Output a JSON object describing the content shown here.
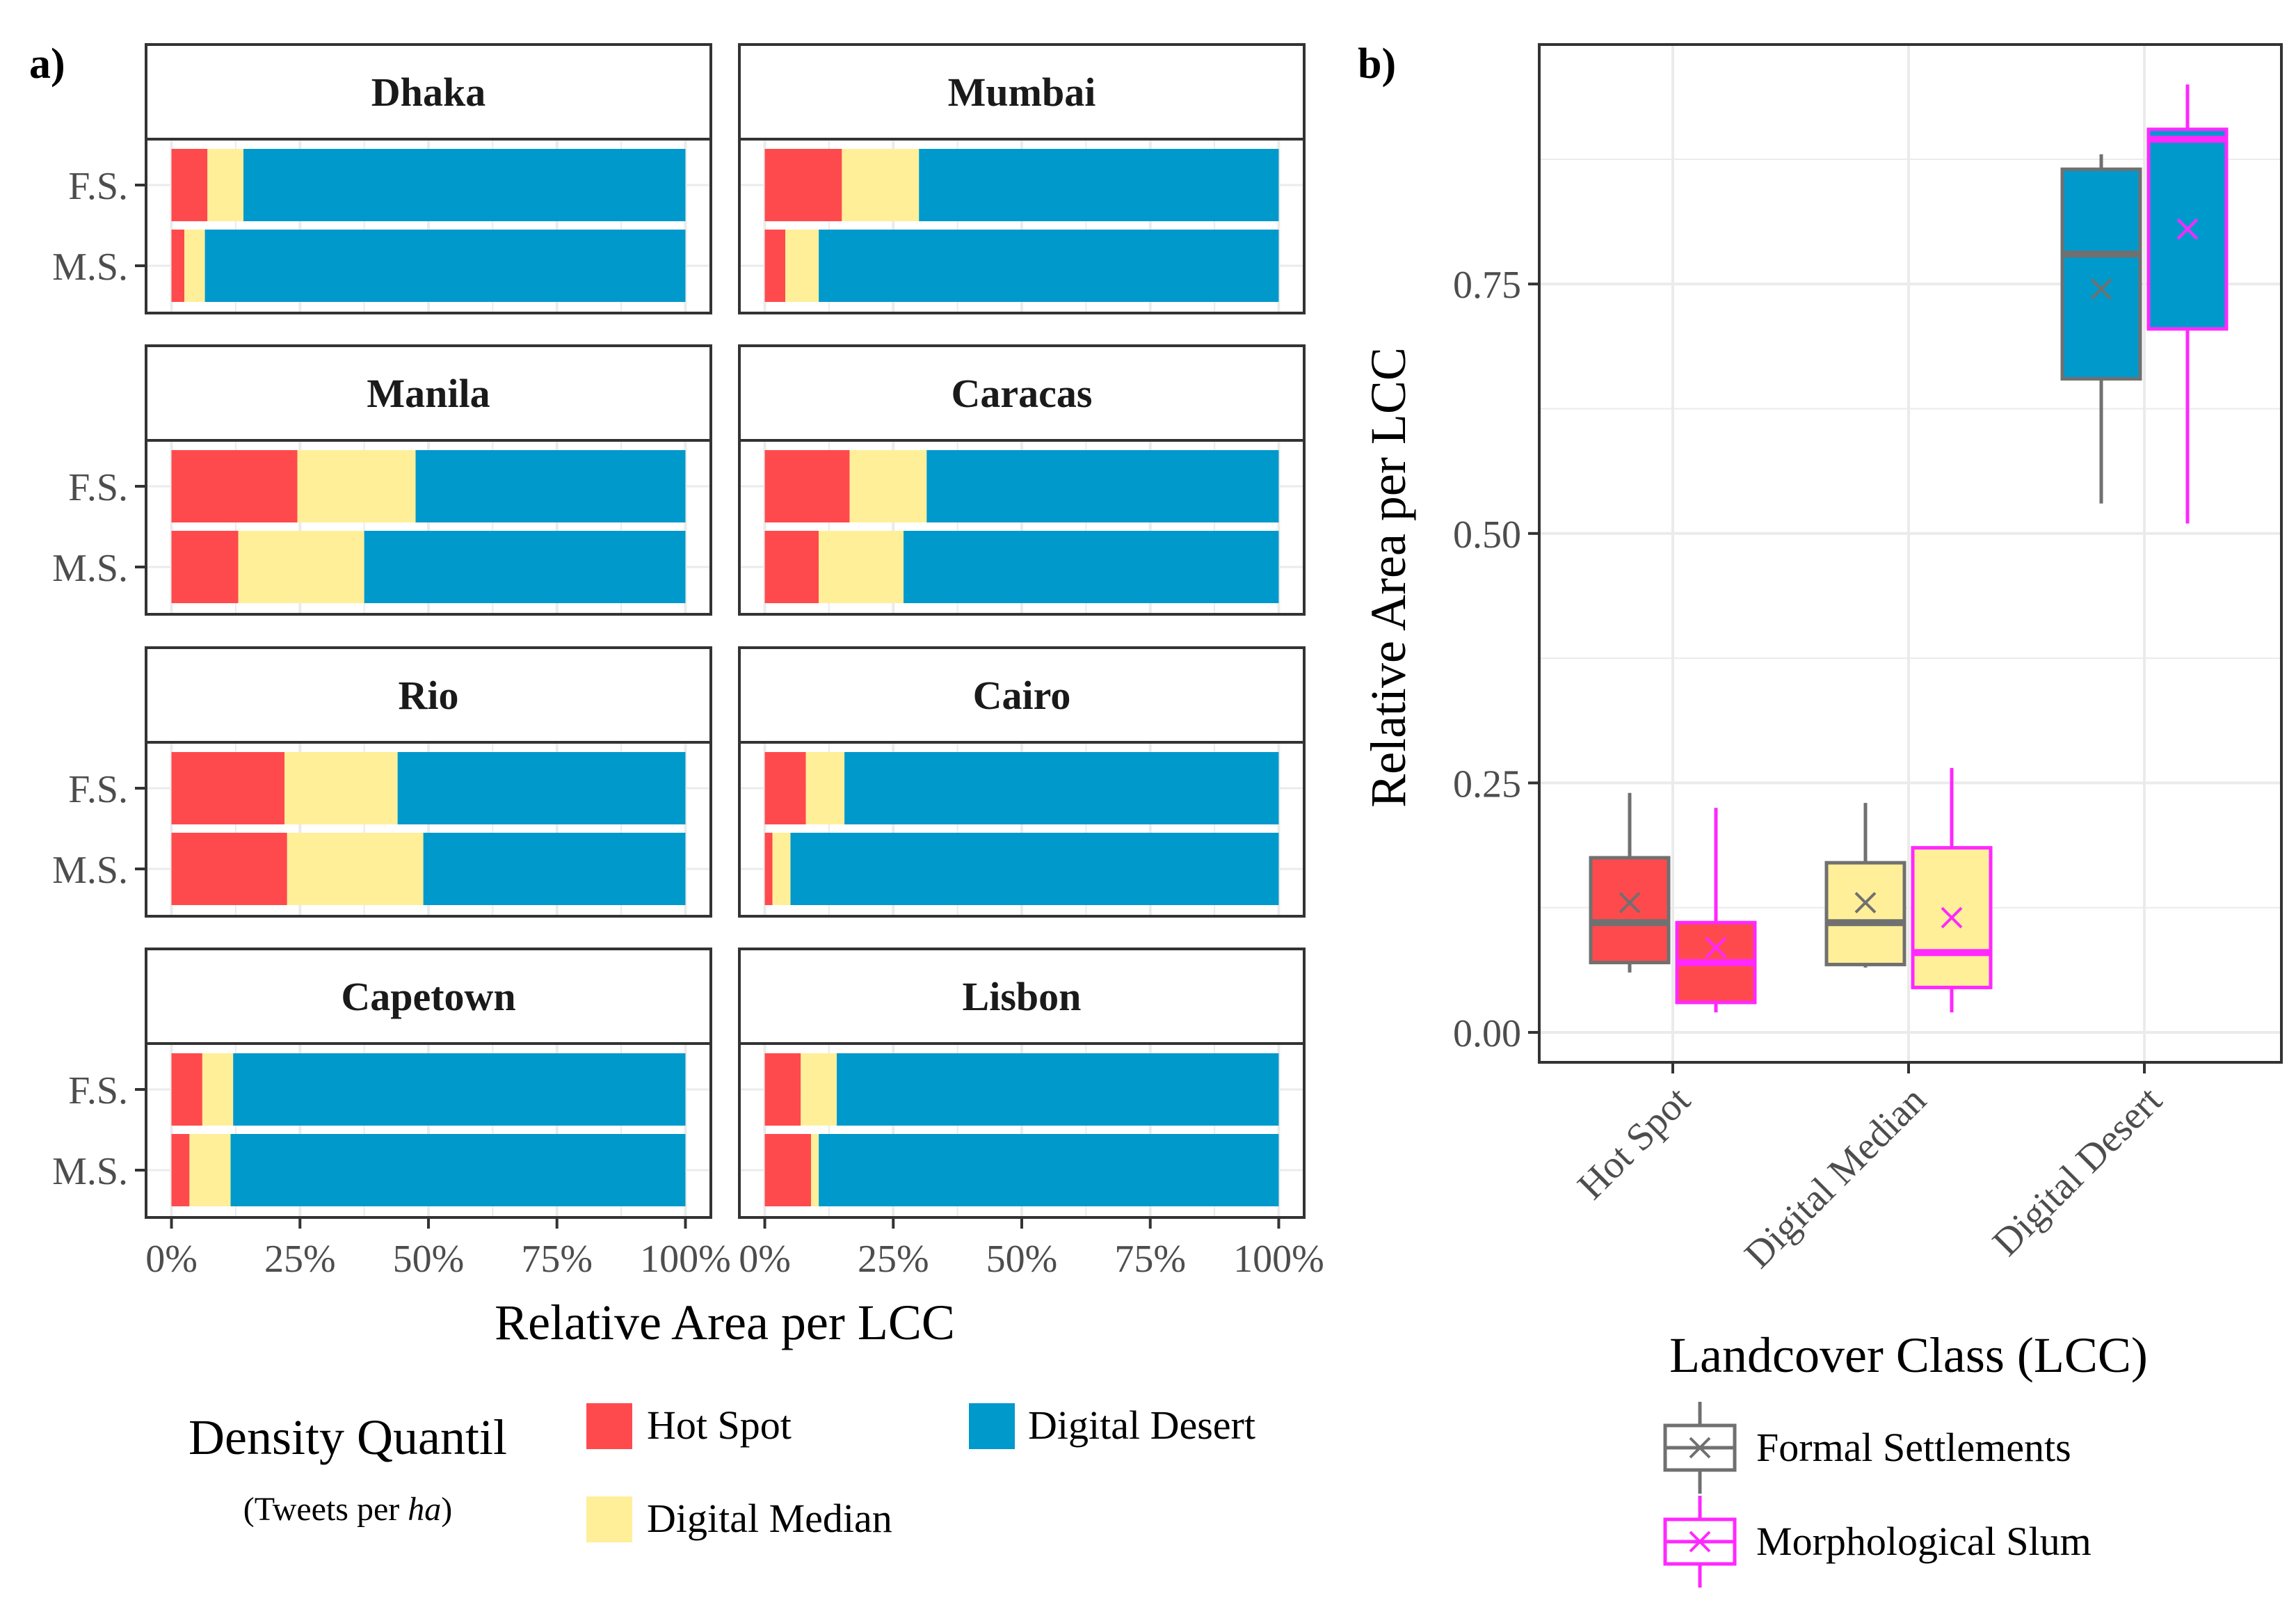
{
  "colors": {
    "hot_spot": "#FF4A4D",
    "digital_median": "#FFEF99",
    "digital_desert": "#0099CC",
    "formal": "#707070",
    "slum": "#FF28FF",
    "grid": "#EBEBEB",
    "frame": "#333333",
    "text": "#1a1a1a"
  },
  "panel_a": {
    "label": "a)",
    "xlabel": "Relative Area per LCC",
    "xticks": [
      "0%",
      "25%",
      "50%",
      "75%",
      "100%"
    ],
    "rows": [
      "F.S.",
      "M.S."
    ],
    "facets": [
      {
        "name": "Dhaka",
        "fs": [
          0.07,
          0.07,
          0.86
        ],
        "ms": [
          0.025,
          0.04,
          0.935
        ]
      },
      {
        "name": "Mumbai",
        "fs": [
          0.15,
          0.15,
          0.7
        ],
        "ms": [
          0.04,
          0.065,
          0.895
        ]
      },
      {
        "name": "Manila",
        "fs": [
          0.245,
          0.23,
          0.525
        ],
        "ms": [
          0.13,
          0.245,
          0.625
        ]
      },
      {
        "name": "Caracas",
        "fs": [
          0.165,
          0.15,
          0.685
        ],
        "ms": [
          0.105,
          0.165,
          0.73
        ]
      },
      {
        "name": "Rio",
        "fs": [
          0.22,
          0.22,
          0.56
        ],
        "ms": [
          0.225,
          0.265,
          0.51
        ]
      },
      {
        "name": "Cairo",
        "fs": [
          0.08,
          0.075,
          0.845
        ],
        "ms": [
          0.015,
          0.035,
          0.95
        ]
      },
      {
        "name": "Capetown",
        "fs": [
          0.06,
          0.06,
          0.88
        ],
        "ms": [
          0.035,
          0.08,
          0.885
        ]
      },
      {
        "name": "Lisbon",
        "fs": [
          0.07,
          0.07,
          0.86
        ],
        "ms": [
          0.09,
          0.015,
          0.895
        ]
      }
    ]
  },
  "panel_b": {
    "label": "b)",
    "ylabel": "Relative Area per LCC",
    "xlabel": "Landcover Class (LCC)",
    "ylim": [
      -0.03,
      0.99
    ],
    "yticks": [
      0.0,
      0.25,
      0.5,
      0.75
    ],
    "ytick_labels": [
      "0.00",
      "0.25",
      "0.50",
      "0.75"
    ],
    "categories": [
      "Hot Spot",
      "Digital Median",
      "Digital Desert"
    ],
    "boxes": {
      "formal": [
        {
          "min": 0.06,
          "q1": 0.07,
          "median": 0.11,
          "q3": 0.175,
          "max": 0.24,
          "mean": 0.13
        },
        {
          "min": 0.065,
          "q1": 0.068,
          "median": 0.11,
          "q3": 0.17,
          "max": 0.23,
          "mean": 0.13
        },
        {
          "min": 0.53,
          "q1": 0.655,
          "median": 0.78,
          "q3": 0.865,
          "max": 0.88,
          "mean": 0.745
        }
      ],
      "slum": [
        {
          "min": 0.02,
          "q1": 0.03,
          "median": 0.07,
          "q3": 0.11,
          "max": 0.225,
          "mean": 0.085
        },
        {
          "min": 0.02,
          "q1": 0.045,
          "median": 0.08,
          "q3": 0.185,
          "max": 0.265,
          "mean": 0.115
        },
        {
          "min": 0.51,
          "q1": 0.705,
          "median": 0.895,
          "q3": 0.905,
          "max": 0.95,
          "mean": 0.805
        }
      ]
    }
  },
  "legend_density": {
    "title": "Density Quantil",
    "subtitle_prefix": "(Tweets per ",
    "subtitle_unit": "ha",
    "subtitle_suffix": ")",
    "items": [
      "Hot Spot",
      "Digital Median",
      "Digital Desert"
    ]
  },
  "legend_lcc": {
    "items": [
      "Formal Settlements",
      "Morphological Slum"
    ]
  }
}
